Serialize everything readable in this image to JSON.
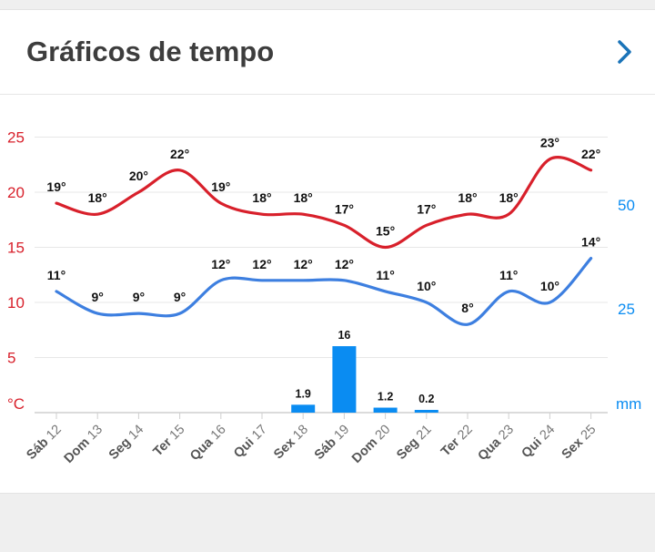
{
  "header": {
    "title": "Gráficos de tempo",
    "chevron_icon": "chevron-right-icon"
  },
  "colors": {
    "max_temp": "#d8202b",
    "min_temp": "#3d7fe0",
    "precip": "#0a8cf2",
    "temp_axis": "#d8202b",
    "precip_axis": "#0a8cf2",
    "grid": "#e7e7e7"
  },
  "chart_data": {
    "type": "line+bar",
    "temp_unit": "°C",
    "precip_unit": "mm",
    "temp_ticks": [
      25,
      20,
      15,
      10,
      5
    ],
    "precip_ticks": [
      50,
      25
    ],
    "ylim_temp": [
      0,
      26
    ],
    "days": [
      {
        "name": "Sáb",
        "num": "12"
      },
      {
        "name": "Dom",
        "num": "13"
      },
      {
        "name": "Seg",
        "num": "14"
      },
      {
        "name": "Ter",
        "num": "15"
      },
      {
        "name": "Qua",
        "num": "16"
      },
      {
        "name": "Qui",
        "num": "17"
      },
      {
        "name": "Sex",
        "num": "18"
      },
      {
        "name": "Sáb",
        "num": "19"
      },
      {
        "name": "Dom",
        "num": "20"
      },
      {
        "name": "Seg",
        "num": "21"
      },
      {
        "name": "Ter",
        "num": "22"
      },
      {
        "name": "Qua",
        "num": "23"
      },
      {
        "name": "Qui",
        "num": "24"
      },
      {
        "name": "Sex",
        "num": "25"
      }
    ],
    "series": [
      {
        "values": [
          19,
          18,
          20,
          22,
          19,
          18,
          18,
          17,
          15,
          17,
          18,
          18,
          23,
          22
        ],
        "labels": [
          "19°",
          "18°",
          "20°",
          "22°",
          "19°",
          "18°",
          "18°",
          "17°",
          "15°",
          "17°",
          "18°",
          "18°",
          "23°",
          "22°"
        ]
      },
      {
        "values": [
          11,
          9,
          9,
          9,
          12,
          12,
          12,
          12,
          11,
          10,
          8,
          11,
          10,
          14
        ],
        "labels": [
          "11°",
          "9°",
          "9°",
          "9°",
          "12°",
          "12°",
          "12°",
          "12°",
          "11°",
          "10°",
          "8°",
          "11°",
          "10°",
          "14°"
        ]
      }
    ],
    "precipitation": {
      "values": [
        0,
        0,
        0,
        0,
        0,
        0,
        1.9,
        16,
        1.2,
        0.2,
        0,
        0,
        0,
        0
      ],
      "labels": [
        "",
        "",
        "",
        "",
        "",
        "",
        "1.9",
        "16",
        "1.2",
        "0.2",
        "",
        "",
        "",
        ""
      ]
    }
  }
}
